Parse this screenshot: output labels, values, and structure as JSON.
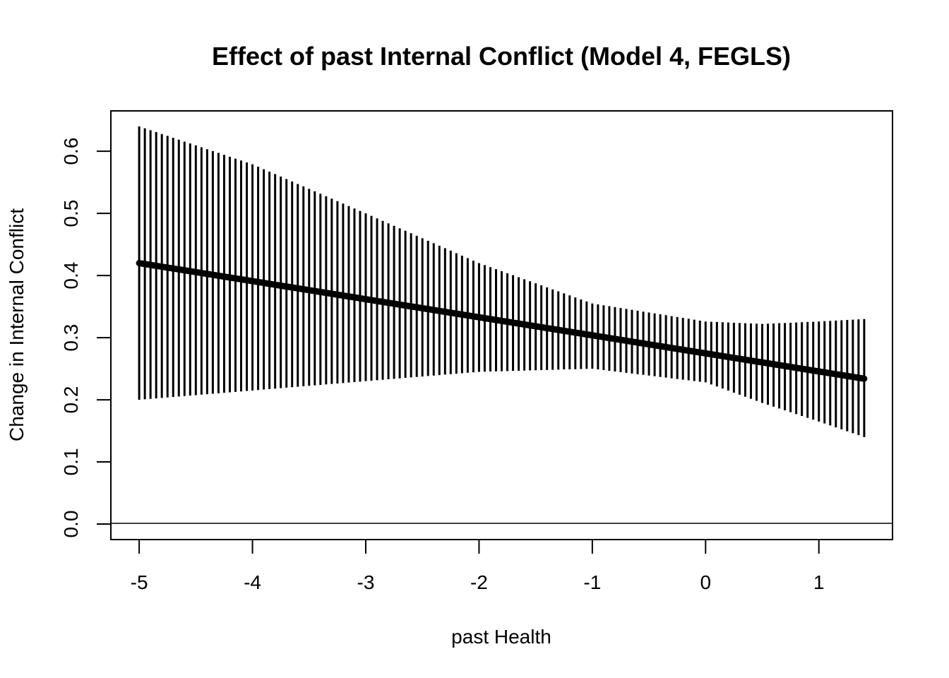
{
  "chart_data": {
    "type": "line",
    "title": "Effect of past Internal Conflict (Model 4, FEGLS)",
    "xlabel": "past Health",
    "ylabel": "Change in Internal Conflict",
    "xlim": [
      -5.25,
      1.65
    ],
    "ylim": [
      -0.025,
      0.665
    ],
    "x_ticks": [
      -5,
      -4,
      -3,
      -2,
      -1,
      0,
      1
    ],
    "x_tick_labels": [
      "-5",
      "-4",
      "-3",
      "-2",
      "-1",
      "0",
      "1"
    ],
    "y_ticks": [
      0.0,
      0.1,
      0.2,
      0.3,
      0.4,
      0.5,
      0.6
    ],
    "y_tick_labels": [
      "0.0",
      "0.1",
      "0.2",
      "0.3",
      "0.4",
      "0.5",
      "0.6"
    ],
    "reference_line_y": 0.0,
    "grid": false,
    "series": [
      {
        "estimate_line": {
          "x": [
            -5.0,
            1.4
          ],
          "y": [
            0.42,
            0.234
          ]
        },
        "confidence_band_points": [
          {
            "x": -5.0,
            "lower": 0.2,
            "upper": 0.64
          },
          {
            "x": -4.0,
            "lower": 0.215,
            "upper": 0.579
          },
          {
            "x": -3.0,
            "lower": 0.23,
            "upper": 0.5
          },
          {
            "x": -2.0,
            "lower": 0.245,
            "upper": 0.42
          },
          {
            "x": -1.0,
            "lower": 0.25,
            "upper": 0.355
          },
          {
            "x": 0.0,
            "lower": 0.228,
            "upper": 0.326
          },
          {
            "x": 0.5,
            "lower": 0.195,
            "upper": 0.322
          },
          {
            "x": 1.0,
            "lower": 0.165,
            "upper": 0.326
          },
          {
            "x": 1.4,
            "lower": 0.14,
            "upper": 0.33
          }
        ],
        "band_step": 0.05
      }
    ]
  }
}
